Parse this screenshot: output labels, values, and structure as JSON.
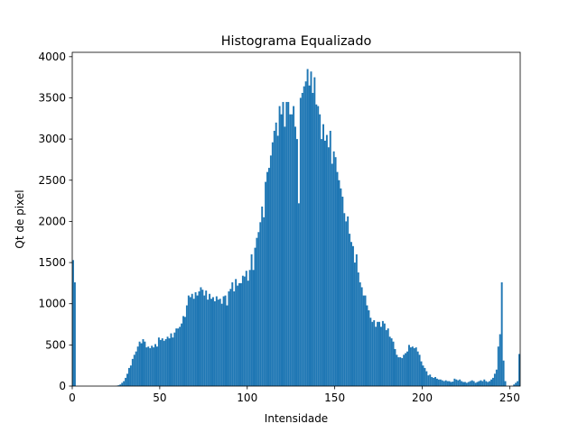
{
  "chart_data": {
    "type": "histogram",
    "title": "Histograma Equalizado",
    "x_label": "Intensidade",
    "y_label": "Qt de pixel",
    "color": "#1f77b4",
    "bins": [
      0,
      1,
      2,
      3,
      4,
      5,
      6,
      7,
      8,
      9,
      10,
      11,
      12,
      13,
      14,
      15,
      16,
      17,
      18,
      19,
      20,
      21,
      22,
      23,
      24,
      25,
      26,
      27,
      28,
      29,
      30,
      31,
      32,
      33,
      34,
      35,
      36,
      37,
      38,
      39,
      40,
      41,
      42,
      43,
      44,
      45,
      46,
      47,
      48,
      49,
      50,
      51,
      52,
      53,
      54,
      55,
      56,
      57,
      58,
      59,
      60,
      61,
      62,
      63,
      64,
      65,
      66,
      67,
      68,
      69,
      70,
      71,
      72,
      73,
      74,
      75,
      76,
      77,
      78,
      79,
      80,
      81,
      82,
      83,
      84,
      85,
      86,
      87,
      88,
      89,
      90,
      91,
      92,
      93,
      94,
      95,
      96,
      97,
      98,
      99,
      100,
      101,
      102,
      103,
      104,
      105,
      106,
      107,
      108,
      109,
      110,
      111,
      112,
      113,
      114,
      115,
      116,
      117,
      118,
      119,
      120,
      121,
      122,
      123,
      124,
      125,
      126,
      127,
      128,
      129,
      130,
      131,
      132,
      133,
      134,
      135,
      136,
      137,
      138,
      139,
      140,
      141,
      142,
      143,
      144,
      145,
      146,
      147,
      148,
      149,
      150,
      151,
      152,
      153,
      154,
      155,
      156,
      157,
      158,
      159,
      160,
      161,
      162,
      163,
      164,
      165,
      166,
      167,
      168,
      169,
      170,
      171,
      172,
      173,
      174,
      175,
      176,
      177,
      178,
      179,
      180,
      181,
      182,
      183,
      184,
      185,
      186,
      187,
      188,
      189,
      190,
      191,
      192,
      193,
      194,
      195,
      196,
      197,
      198,
      199,
      200,
      201,
      202,
      203,
      204,
      205,
      206,
      207,
      208,
      209,
      210,
      211,
      212,
      213,
      214,
      215,
      216,
      217,
      218,
      219,
      220,
      221,
      222,
      223,
      224,
      225,
      226,
      227,
      228,
      229,
      230,
      231,
      232,
      233,
      234,
      235,
      236,
      237,
      238,
      239,
      240,
      241,
      242,
      243,
      244,
      245,
      246,
      247,
      248,
      249,
      250,
      251,
      252,
      253,
      254,
      255,
      256
    ],
    "values": [
      1530,
      1260,
      0,
      0,
      0,
      0,
      0,
      0,
      0,
      0,
      0,
      0,
      0,
      0,
      0,
      0,
      0,
      0,
      0,
      0,
      0,
      0,
      0,
      0,
      0,
      5,
      10,
      20,
      40,
      60,
      100,
      150,
      220,
      250,
      330,
      380,
      420,
      480,
      540,
      520,
      570,
      540,
      470,
      480,
      460,
      490,
      470,
      510,
      480,
      590,
      560,
      580,
      550,
      570,
      600,
      580,
      640,
      590,
      650,
      700,
      700,
      720,
      760,
      850,
      840,
      980,
      1100,
      1080,
      1120,
      1060,
      1140,
      1100,
      1150,
      1200,
      1170,
      1100,
      1160,
      1050,
      1120,
      1060,
      1080,
      1030,
      1090,
      1050,
      1060,
      1000,
      1090,
      1100,
      980,
      1150,
      1180,
      1260,
      1150,
      1300,
      1220,
      1250,
      1250,
      1340,
      1330,
      1400,
      1280,
      1410,
      1600,
      1410,
      1680,
      1800,
      1870,
      1990,
      2180,
      2050,
      2480,
      2600,
      2650,
      2800,
      2960,
      3100,
      3200,
      3040,
      3400,
      3300,
      3450,
      3150,
      3450,
      3450,
      3300,
      3300,
      3400,
      3150,
      3000,
      2220,
      3500,
      3560,
      3640,
      3700,
      3850,
      3650,
      3820,
      3560,
      3750,
      3420,
      3400,
      3300,
      3000,
      3180,
      2980,
      3050,
      2900,
      3100,
      2700,
      2850,
      2780,
      2600,
      2500,
      2400,
      2300,
      2100,
      2000,
      2060,
      1850,
      1750,
      1700,
      1500,
      1600,
      1380,
      1260,
      1200,
      1100,
      1100,
      980,
      920,
      830,
      780,
      800,
      720,
      780,
      780,
      720,
      790,
      760,
      680,
      700,
      600,
      580,
      540,
      450,
      380,
      350,
      350,
      340,
      380,
      400,
      420,
      500,
      470,
      480,
      460,
      470,
      420,
      380,
      300,
      250,
      220,
      180,
      130,
      140,
      110,
      100,
      110,
      90,
      80,
      80,
      70,
      60,
      70,
      60,
      60,
      50,
      55,
      90,
      80,
      70,
      80,
      60,
      50,
      50,
      40,
      50,
      60,
      70,
      60,
      40,
      50,
      60,
      70,
      60,
      80,
      60,
      50,
      60,
      80,
      100,
      150,
      200,
      480,
      630,
      1260,
      310,
      60,
      0,
      0,
      0,
      0,
      20,
      40,
      60,
      390
    ],
    "xlim": [
      0,
      256
    ],
    "xticks": [
      0,
      50,
      100,
      150,
      200,
      250
    ],
    "ylim": [
      0,
      4053
    ],
    "yticks": [
      0,
      500,
      1000,
      1500,
      2000,
      2500,
      3000,
      3500,
      4000
    ]
  }
}
